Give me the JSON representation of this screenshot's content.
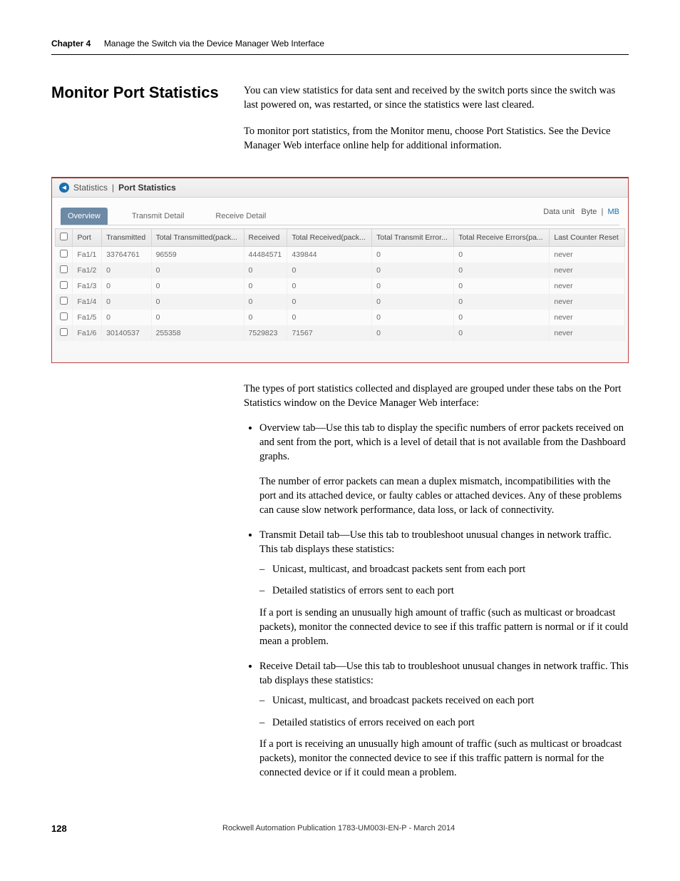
{
  "header": {
    "chapter_label": "Chapter 4",
    "chapter_title": "Manage the Switch via the Device Manager Web Interface"
  },
  "section": {
    "heading": "Monitor Port Statistics",
    "intro1": "You can view statistics for data sent and received by the switch ports since the switch was last powered on, was restarted, or since the statistics were last cleared.",
    "intro2": "To monitor port statistics, from the Monitor menu, choose Port Statistics. See the Device Manager Web interface online help for additional information."
  },
  "screenshot": {
    "breadcrumb1": "Statistics",
    "breadcrumb2": "Port Statistics",
    "tabs": {
      "t1": "Overview",
      "t2": "Transmit Detail",
      "t3": "Receive Detail"
    },
    "data_unit_label": "Data unit",
    "data_unit_byte": "Byte",
    "data_unit_mb": "MB",
    "columns": {
      "c0": "",
      "c1": "Port",
      "c2": "Transmitted",
      "c3": "Total Transmitted(pack...",
      "c4": "Received",
      "c5": "Total Received(pack...",
      "c6": "Total Transmit Error...",
      "c7": "Total Receive Errors(pa...",
      "c8": "Last Counter Reset"
    },
    "rows": [
      {
        "port": "Fa1/1",
        "tx": "33764761",
        "ttx": "96559",
        "rx": "44484571",
        "trx": "439844",
        "txe": "0",
        "rxe": "0",
        "reset": "never"
      },
      {
        "port": "Fa1/2",
        "tx": "0",
        "ttx": "0",
        "rx": "0",
        "trx": "0",
        "txe": "0",
        "rxe": "0",
        "reset": "never"
      },
      {
        "port": "Fa1/3",
        "tx": "0",
        "ttx": "0",
        "rx": "0",
        "trx": "0",
        "txe": "0",
        "rxe": "0",
        "reset": "never"
      },
      {
        "port": "Fa1/4",
        "tx": "0",
        "ttx": "0",
        "rx": "0",
        "trx": "0",
        "txe": "0",
        "rxe": "0",
        "reset": "never"
      },
      {
        "port": "Fa1/5",
        "tx": "0",
        "ttx": "0",
        "rx": "0",
        "trx": "0",
        "txe": "0",
        "rxe": "0",
        "reset": "never"
      },
      {
        "port": "Fa1/6",
        "tx": "30140537",
        "ttx": "255358",
        "rx": "7529823",
        "trx": "71567",
        "txe": "0",
        "rxe": "0",
        "reset": "never"
      }
    ]
  },
  "body": {
    "p1": "The types of port statistics collected and displayed are grouped under these tabs on the Port Statistics window on the Device Manager Web interface:",
    "li1a": "Overview tab—Use this tab to display the specific numbers of error packets received on and sent from the port, which is a level of detail that is not available from the Dashboard graphs.",
    "li1b": "The number of error packets can mean a duplex mismatch, incompatibilities with the port and its attached device, or faulty cables or attached devices. Any of these problems can cause slow network performance, data loss, or lack of connectivity.",
    "li2a": "Transmit Detail tab—Use this tab to troubleshoot unusual changes in network traffic. This tab displays these statistics:",
    "li2s1": "Unicast, multicast, and broadcast packets sent from each port",
    "li2s2": "Detailed statistics of errors sent to each port",
    "li2b": "If a port is sending an unusually high amount of traffic (such as multicast or broadcast packets), monitor the connected device to see if this traffic pattern is normal or if it could mean a problem.",
    "li3a": "Receive Detail tab—Use this tab to troubleshoot unusual changes in network traffic. This tab displays these statistics:",
    "li3s1": "Unicast, multicast, and broadcast packets received on each port",
    "li3s2": "Detailed statistics of errors received on each port",
    "li3b": "If a port is receiving an unusually high amount of traffic (such as multicast or broadcast packets), monitor the connected device to see if this traffic pattern is normal for the connected device or if it could mean a problem."
  },
  "footer": {
    "page": "128",
    "pub": "Rockwell Automation Publication 1783-UM003I-EN-P - March 2014"
  }
}
